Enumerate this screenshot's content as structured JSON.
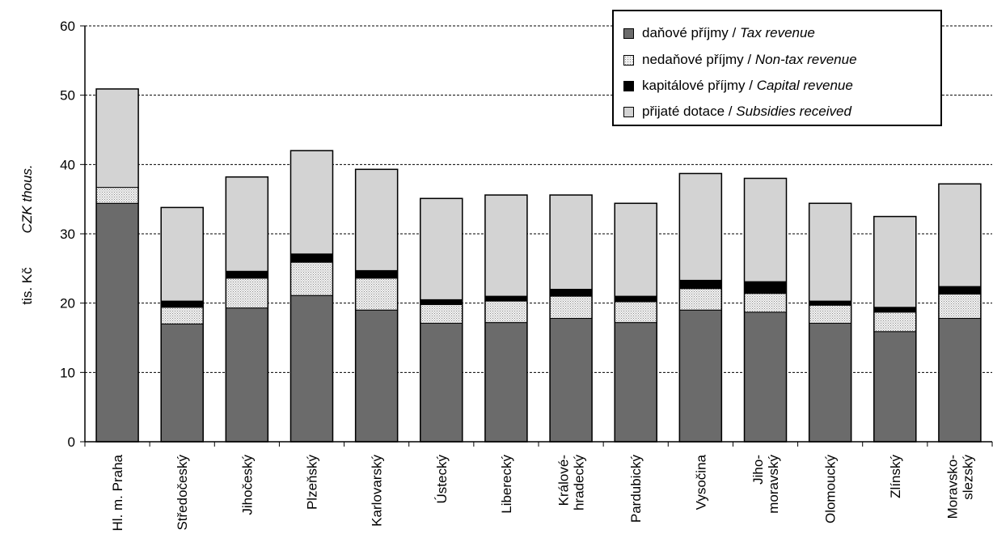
{
  "chart_data": {
    "type": "bar",
    "stacked": true,
    "ylabel_cz": "tis. Kč",
    "ylabel_en": "CZK thous.",
    "ylim": [
      0,
      60
    ],
    "yticks": [
      0,
      10,
      20,
      30,
      40,
      50,
      60
    ],
    "grid": "horizontal dashed",
    "legend_position": "top-right",
    "categories": [
      "Hl. m. Praha",
      "Středočeský",
      "Jihočeský",
      "Plzeňský",
      "Karlovarský",
      "Ústecký",
      "Liberecký",
      "Královéhradecký",
      "Pardubický",
      "Vysočina",
      "Jihomoravský",
      "Olomoucký",
      "Zlínský",
      "Moravskoslezský"
    ],
    "category_lines": [
      [
        "Hl. m. Praha"
      ],
      [
        "Středočeský"
      ],
      [
        "Jihočeský"
      ],
      [
        "Plzeňský"
      ],
      [
        "Karlovarský"
      ],
      [
        "Ústecký"
      ],
      [
        "Liberecký"
      ],
      [
        "Králové-",
        "hradecký"
      ],
      [
        "Pardubický"
      ],
      [
        "Vysočina"
      ],
      [
        "Jiho-",
        "moravský"
      ],
      [
        "Olomoucký"
      ],
      [
        "Zlínský"
      ],
      [
        "Moravsko-",
        "slezský"
      ]
    ],
    "series": [
      {
        "name_cz": "daňové příjmy",
        "name_en": "Tax revenue",
        "color": "#6b6b6b",
        "pattern": "solid",
        "values": [
          34.4,
          17.0,
          19.3,
          21.1,
          19.0,
          17.1,
          17.2,
          17.8,
          17.2,
          19.0,
          18.7,
          17.1,
          15.9,
          17.8
        ]
      },
      {
        "name_cz": "nedaňové příjmy",
        "name_en": "Non-tax revenue",
        "color": "#f0f0f0",
        "pattern": "dots",
        "values": [
          2.3,
          2.4,
          4.3,
          4.8,
          4.6,
          2.7,
          3.1,
          3.2,
          3.0,
          3.1,
          2.7,
          2.6,
          2.8,
          3.5
        ]
      },
      {
        "name_cz": "kapitálové příjmy",
        "name_en": "Capital revenue",
        "color": "#000000",
        "pattern": "solid",
        "values": [
          0.0,
          0.9,
          1.0,
          1.2,
          1.1,
          0.7,
          0.7,
          1.0,
          0.8,
          1.2,
          1.7,
          0.6,
          0.7,
          1.1
        ]
      },
      {
        "name_cz": "přijaté dotace",
        "name_en": "Subsidies received",
        "color": "#d3d3d3",
        "pattern": "solid",
        "values": [
          14.2,
          13.5,
          13.6,
          14.9,
          14.6,
          14.6,
          14.6,
          13.6,
          13.4,
          15.4,
          14.9,
          14.1,
          13.1,
          14.8
        ]
      }
    ]
  }
}
